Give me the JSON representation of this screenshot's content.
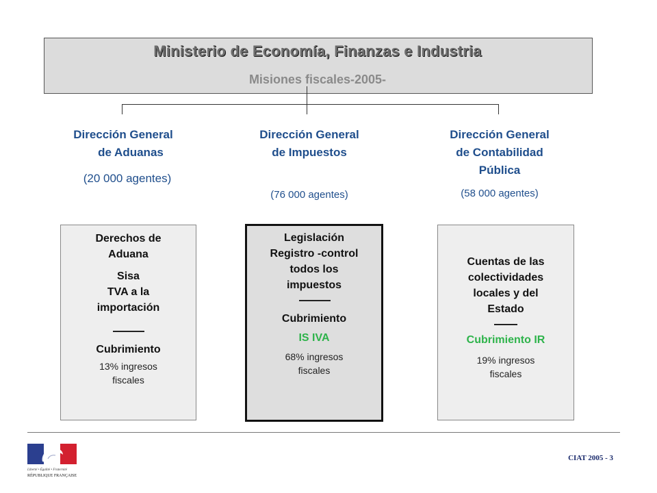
{
  "header": {
    "title": "Ministerio de Economía, Finanzas e Industria",
    "subtitle": "Misiones  fiscales-2005-"
  },
  "directions": [
    {
      "title_lines": [
        "Dirección General",
        "de Aduanas"
      ],
      "agents": "(20 000 agentes)",
      "box": {
        "lines_top": [
          "Derechos de",
          "Aduana"
        ],
        "lines_mid": [
          "Sisa",
          "TVA a la",
          "importación"
        ],
        "coverage_label": "Cubrimiento",
        "coverage_items": "",
        "share_lines": [
          "13% ingresos",
          "fiscales"
        ]
      }
    },
    {
      "title_lines": [
        "Dirección General",
        "de Impuestos"
      ],
      "agents": "(76 000 agentes)",
      "box": {
        "lines_top": [
          "Legislación",
          "Registro -control",
          "todos los",
          "impuestos"
        ],
        "coverage_label": "Cubrimiento",
        "coverage_items": "IS IVA",
        "share_lines": [
          "68% ingresos",
          "fiscales"
        ]
      }
    },
    {
      "title_lines": [
        "Dirección General",
        "de Contabilidad",
        "Pública"
      ],
      "agents": "(58 000 agentes)",
      "box": {
        "lines_top": [
          "Cuentas de las",
          "colectividades",
          "locales y del",
          "Estado"
        ],
        "coverage_label": "Cubrimiento IR",
        "share_lines": [
          "19% ingresos",
          "fiscales"
        ]
      }
    }
  ],
  "footer": {
    "logo_text_1": "Liberté • Égalité • Fraternité",
    "logo_text_2": "RÉPUBLIQUE FRANÇAISE",
    "code": "CIAT  2005 - 3"
  },
  "colors": {
    "direction_blue": "#1f4e8c",
    "coverage_green": "#2db34a",
    "flag_blue": "#2b3f8f",
    "flag_red": "#d3202f"
  }
}
